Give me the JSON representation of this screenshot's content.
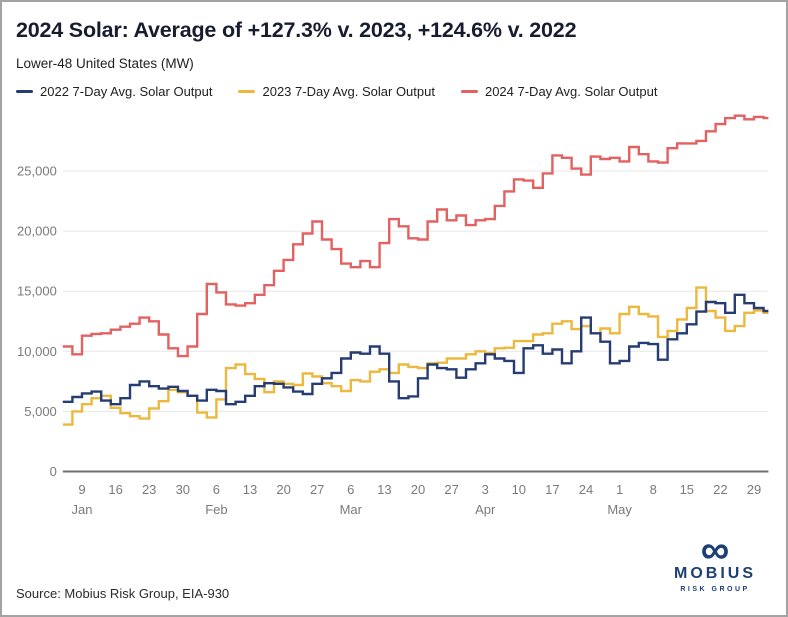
{
  "header": {
    "title": "2024 Solar: Average of +127.3% v. 2023, +124.6% v. 2022",
    "subtitle": "Lower-48 United States (MW)"
  },
  "footer": {
    "source": "Source: Mobius Risk Group, EIA-930",
    "logo": {
      "infinity_icon": "∞",
      "name": "MOBIUS",
      "tagline": "RISK GROUP",
      "color": "#1d3f74"
    }
  },
  "chart_data": {
    "type": "line",
    "style": "step",
    "title": "2024 Solar: Average of +127.3% v. 2023, +124.6% v. 2022",
    "subtitle": "Lower-48 United States (MW)",
    "y_unit": "MW",
    "grid": "horizontal-only",
    "legend_position": "top-left",
    "y_axis": {
      "ticks": [
        0,
        5000,
        10000,
        15000,
        20000,
        25000
      ],
      "range_shown": [
        0,
        29600
      ]
    },
    "x_axis": {
      "start_date": "Jan 5",
      "end_date": "May 31",
      "domain_days": [
        0,
        147
      ],
      "ticks": [
        {
          "label": "9",
          "day": 4
        },
        {
          "label": "16",
          "day": 11
        },
        {
          "label": "23",
          "day": 18
        },
        {
          "label": "30",
          "day": 25
        },
        {
          "label": "6",
          "day": 32
        },
        {
          "label": "13",
          "day": 39
        },
        {
          "label": "20",
          "day": 46
        },
        {
          "label": "27",
          "day": 53
        },
        {
          "label": "6",
          "day": 60
        },
        {
          "label": "13",
          "day": 67
        },
        {
          "label": "20",
          "day": 74
        },
        {
          "label": "27",
          "day": 81
        },
        {
          "label": "3",
          "day": 88
        },
        {
          "label": "10",
          "day": 95
        },
        {
          "label": "17",
          "day": 102
        },
        {
          "label": "24",
          "day": 109
        },
        {
          "label": "1",
          "day": 116
        },
        {
          "label": "8",
          "day": 123
        },
        {
          "label": "15",
          "day": 130
        },
        {
          "label": "22",
          "day": 137
        },
        {
          "label": "29",
          "day": 144
        }
      ],
      "months": [
        {
          "label": "Jan",
          "day": 4
        },
        {
          "label": "Feb",
          "day": 32
        },
        {
          "label": "Mar",
          "day": 60
        },
        {
          "label": "Apr",
          "day": 88
        },
        {
          "label": "May",
          "day": 116
        }
      ]
    },
    "sample_step_days": 2,
    "series": [
      {
        "name": "2022 7-Day Avg. Solar Output",
        "color": "#263c72",
        "start_day": 0,
        "values": [
          5800,
          6200,
          6500,
          6650,
          5900,
          5600,
          6100,
          7200,
          7500,
          7100,
          6900,
          7050,
          6700,
          6300,
          5900,
          6800,
          6700,
          5600,
          5800,
          6300,
          7100,
          7350,
          7300,
          7000,
          6650,
          6450,
          7300,
          7750,
          8200,
          9400,
          9900,
          9800,
          10400,
          9800,
          7500,
          6100,
          6250,
          7750,
          8900,
          8600,
          8500,
          7800,
          8500,
          9000,
          9750,
          9400,
          9200,
          8200,
          10250,
          10500,
          9800,
          10150,
          9000,
          10000,
          12800,
          11500,
          10800,
          9000,
          9200,
          10400,
          10700,
          10600,
          9300,
          11000,
          11500,
          12250,
          13300,
          14100,
          14000,
          13200,
          14700,
          14000,
          13600,
          13350
        ]
      },
      {
        "name": "2023 7-Day Avg. Solar Output",
        "color": "#ecb83d",
        "start_day": 0,
        "values": [
          3900,
          5000,
          5600,
          6100,
          6300,
          5300,
          4850,
          4600,
          4400,
          5250,
          5850,
          6800,
          6600,
          6300,
          4900,
          4500,
          6000,
          8600,
          8900,
          8100,
          7700,
          6600,
          7500,
          7300,
          7200,
          8150,
          7900,
          7350,
          7100,
          6700,
          7600,
          7500,
          8300,
          8500,
          8200,
          8900,
          8700,
          8600,
          9000,
          9050,
          9400,
          9400,
          9750,
          10000,
          9850,
          10250,
          10300,
          10850,
          10850,
          11400,
          11500,
          12300,
          12500,
          11850,
          12100,
          11500,
          11900,
          11500,
          13100,
          13700,
          13100,
          12900,
          11200,
          11700,
          12650,
          13600,
          15300,
          13350,
          12800,
          11700,
          12100,
          13200,
          13400,
          13200
        ]
      },
      {
        "name": "2024 7-Day Avg. Solar Output",
        "color": "#e36161",
        "start_day": 0,
        "values": [
          10400,
          9750,
          11300,
          11450,
          11500,
          11800,
          12050,
          12300,
          12800,
          12500,
          11400,
          10250,
          9600,
          10400,
          13100,
          15600,
          14900,
          13900,
          13800,
          14000,
          14700,
          15500,
          16700,
          17600,
          18900,
          19800,
          20800,
          19300,
          18500,
          17300,
          17000,
          17500,
          17000,
          19000,
          21000,
          20400,
          19400,
          19300,
          20800,
          21800,
          20900,
          21300,
          20500,
          20900,
          21000,
          22100,
          23300,
          24300,
          24200,
          23600,
          24800,
          26300,
          26100,
          25200,
          24700,
          26200,
          26000,
          26100,
          25800,
          27000,
          26400,
          25800,
          25700,
          26900,
          27300,
          27300,
          27500,
          28300,
          28900,
          29400,
          29600,
          29300,
          29500,
          29400
        ]
      }
    ]
  }
}
